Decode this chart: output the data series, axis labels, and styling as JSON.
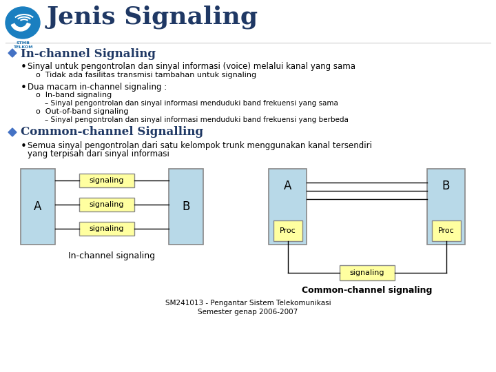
{
  "title": "Jenis Signaling",
  "title_color": "#1F3864",
  "title_fontsize": 26,
  "bg_color": "#FFFFFF",
  "section1_header": "In-channel Signaling",
  "section2_header": "Common-channel Signalling",
  "header_color": "#1F3864",
  "bullet1_text": "Sinyal untuk pengontrolan dan sinyal informasi (voice) melalui kanal yang sama",
  "bullet1_sub": "Tidak ada fasilitas transmisi tambahan untuk signaling",
  "bullet2_text": "Dua macam in-channel signaling :",
  "bullet2_sub1": "In-band signaling",
  "bullet2_sub1_detail": "– Sinyal pengontrolan dan sinyal informasi menduduki band frekuensi yang sama",
  "bullet2_sub2": "Out-of-band signaling",
  "bullet2_sub2_detail": "– Sinyal pengontrolan dan sinyal informasi menduduki band frekuensi yang berbeda",
  "bullet3_text": "Semua sinyal pengontrolan dari satu kelompok trunk menggunakan kanal tersendiri",
  "bullet3_text2": "yang terpisah dari sinyal informasi",
  "diagram_label_inchannel": "In-channel signaling",
  "diagram_label_common": "Common-channel signaling",
  "box_color_AB": "#B8D9E8",
  "box_color_signaling": "#FFFFA0",
  "signaling_text": "signaling",
  "proc_text": "Proc",
  "footer1": "SM241013 - Pengantar Sistem Telekomunikasi",
  "footer2": "Semester genap 2006-2007",
  "text_color": "#000000",
  "diamond_color": "#4472C4",
  "logo_color": "#1a6fad",
  "logo_text_color": "#1a6fad"
}
